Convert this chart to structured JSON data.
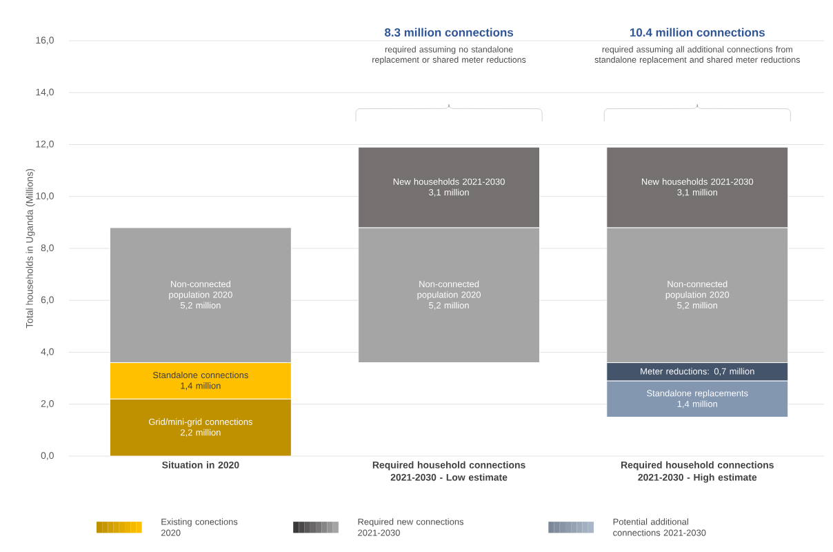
{
  "chart_data": {
    "type": "bar",
    "ylabel": "Total households in Uganda (Millions)",
    "categories": [
      "Situation in 2020",
      "Required household connections 2021-2030 - Low estimate",
      "Required household connections 2021-2030 - High estimate"
    ],
    "series": [
      {
        "name": "Grid/mini-grid connections",
        "color": "#bf9000",
        "values": [
          2.2,
          null,
          null
        ],
        "base": [
          0,
          null,
          null
        ],
        "value_labels": [
          "2,2 million",
          null,
          null
        ]
      },
      {
        "name": "Standalone connections",
        "color": "#ffc000",
        "values": [
          1.4,
          null,
          null
        ],
        "base": [
          2.2,
          null,
          null
        ],
        "value_labels": [
          "1,4 million",
          null,
          null
        ]
      },
      {
        "name": "Standalone replacements",
        "color": "#8497b0",
        "values": [
          null,
          null,
          1.4
        ],
        "base": [
          null,
          null,
          1.5
        ],
        "value_labels": [
          null,
          null,
          "1,4 million"
        ]
      },
      {
        "name": "Meter reductions: 0,7 million",
        "color": "#44546a",
        "values": [
          null,
          null,
          0.7
        ],
        "base": [
          null,
          null,
          2.9
        ],
        "value_labels": [
          null,
          null,
          null
        ]
      },
      {
        "name": "Non-connected population 2020",
        "color": "#a5a5a5",
        "values": [
          5.2,
          5.2,
          5.2
        ],
        "base": [
          3.6,
          3.6,
          3.6
        ],
        "value_labels": [
          "5,2 million",
          "5,2 million",
          "5,2 million"
        ]
      },
      {
        "name": "New households 2021-2030",
        "color": "#767171",
        "values": [
          null,
          3.1,
          3.1
        ],
        "base": [
          null,
          8.8,
          8.8
        ],
        "value_labels": [
          null,
          "3,1 million",
          "3,1 million"
        ]
      }
    ],
    "ylim": [
      0,
      16
    ],
    "yticks": [
      {
        "value": 0,
        "label": "0,0"
      },
      {
        "value": 2,
        "label": "2,0"
      },
      {
        "value": 4,
        "label": "4,0"
      },
      {
        "value": 6,
        "label": "6,0"
      },
      {
        "value": 8,
        "label": "8,0"
      },
      {
        "value": 10,
        "label": "10,0"
      },
      {
        "value": 12,
        "label": "12,0"
      },
      {
        "value": 14,
        "label": "14,0"
      },
      {
        "value": 16,
        "label": "16,0"
      }
    ],
    "grid": "y",
    "annotations": [
      "8.3 million connections",
      "required assuming no standalone replacement or shared meter reductions",
      "10.4 million connections",
      "required assuming all additional connections from standalone replacement and shared meter reductions",
      "Existing conections 2020",
      "Required new connections 2021-2030",
      "Potential additional connections 2021-2030"
    ]
  }
}
